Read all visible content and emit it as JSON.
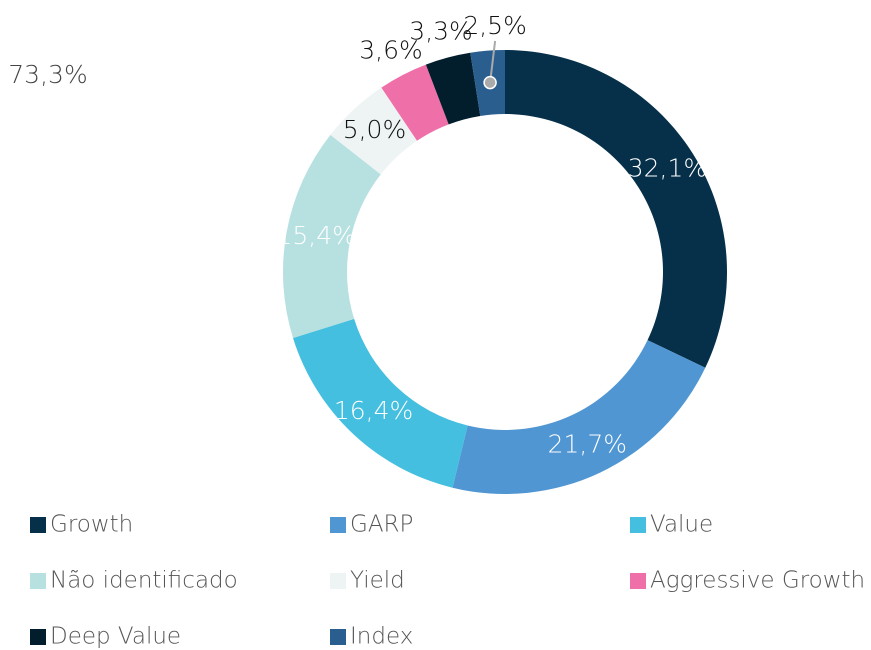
{
  "chart_data": {
    "type": "donut",
    "annotation": "73,3%",
    "categories": [
      "Growth",
      "GARP",
      "Value",
      "Não identificado",
      "Yield",
      "Aggressive Growth",
      "Deep Value",
      "Index"
    ],
    "values": [
      32.1,
      21.7,
      16.4,
      15.4,
      5.0,
      3.6,
      3.3,
      2.5
    ],
    "value_labels": [
      "32,1%",
      "21,7%",
      "16,4%",
      "15,4%",
      "5,0%",
      "3,6%",
      "3,3%",
      "2,5%"
    ],
    "colors": [
      "#06304a",
      "#5096d2",
      "#45bfdf",
      "#b7e0e0",
      "#eef3f3",
      "#ef6fa8",
      "#021d2b",
      "#2a5e8f"
    ],
    "legend": "bottom"
  }
}
